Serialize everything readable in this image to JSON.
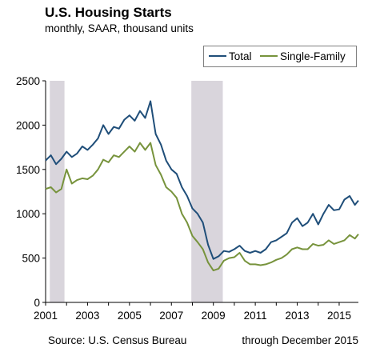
{
  "title": "U.S. Housing Starts",
  "subtitle": "monthly, SAAR,  thousand units",
  "source": "Source: U.S. Census Bureau",
  "note": "through December 2015",
  "colors": {
    "total": "#1f4e79",
    "single_family": "#77933c",
    "recession": "#d9d5dc",
    "axis": "#000000"
  },
  "chart_data": {
    "type": "line",
    "title": "U.S. Housing Starts",
    "subtitle": "monthly, SAAR,  thousand units",
    "xlabel": "",
    "ylabel": "",
    "xlim": [
      2001,
      2015.917
    ],
    "ylim": [
      0,
      2500
    ],
    "x_ticks": [
      "2001",
      "2003",
      "2005",
      "2007",
      "2009",
      "2011",
      "2013",
      "2015"
    ],
    "y_ticks": [
      "0",
      "500",
      "1000",
      "1500",
      "2000",
      "2500"
    ],
    "legend": {
      "position": "top-right",
      "entries": [
        "Total",
        "Single-Family"
      ]
    },
    "grid": false,
    "shaded_periods": [
      {
        "start": 2001.2,
        "end": 2001.9
      },
      {
        "start": 2007.95,
        "end": 2009.45
      }
    ],
    "series": [
      {
        "name": "Total",
        "x": [
          2001.0,
          2001.25,
          2001.5,
          2001.75,
          2002.0,
          2002.25,
          2002.5,
          2002.75,
          2003.0,
          2003.25,
          2003.5,
          2003.75,
          2004.0,
          2004.25,
          2004.5,
          2004.75,
          2005.0,
          2005.25,
          2005.5,
          2005.75,
          2006.0,
          2006.25,
          2006.5,
          2006.75,
          2007.0,
          2007.25,
          2007.5,
          2007.75,
          2008.0,
          2008.25,
          2008.5,
          2008.75,
          2009.0,
          2009.25,
          2009.5,
          2009.75,
          2010.0,
          2010.25,
          2010.5,
          2010.75,
          2011.0,
          2011.25,
          2011.5,
          2011.75,
          2012.0,
          2012.25,
          2012.5,
          2012.75,
          2013.0,
          2013.25,
          2013.5,
          2013.75,
          2014.0,
          2014.25,
          2014.5,
          2014.75,
          2015.0,
          2015.25,
          2015.5,
          2015.75,
          2015.917
        ],
        "values": [
          1600,
          1660,
          1560,
          1620,
          1700,
          1640,
          1680,
          1760,
          1720,
          1780,
          1850,
          2000,
          1900,
          1980,
          1960,
          2060,
          2110,
          2050,
          2160,
          2080,
          2270,
          1900,
          1780,
          1600,
          1500,
          1450,
          1300,
          1200,
          1060,
          1000,
          900,
          650,
          490,
          520,
          580,
          570,
          600,
          640,
          580,
          560,
          580,
          560,
          600,
          680,
          700,
          740,
          780,
          900,
          950,
          860,
          900,
          1000,
          880,
          1000,
          1100,
          1040,
          1050,
          1160,
          1200,
          1100,
          1150
        ]
      },
      {
        "name": "Single-Family",
        "x": [
          2001.0,
          2001.25,
          2001.5,
          2001.75,
          2002.0,
          2002.25,
          2002.5,
          2002.75,
          2003.0,
          2003.25,
          2003.5,
          2003.75,
          2004.0,
          2004.25,
          2004.5,
          2004.75,
          2005.0,
          2005.25,
          2005.5,
          2005.75,
          2006.0,
          2006.25,
          2006.5,
          2006.75,
          2007.0,
          2007.25,
          2007.5,
          2007.75,
          2008.0,
          2008.25,
          2008.5,
          2008.75,
          2009.0,
          2009.25,
          2009.5,
          2009.75,
          2010.0,
          2010.25,
          2010.5,
          2010.75,
          2011.0,
          2011.25,
          2011.5,
          2011.75,
          2012.0,
          2012.25,
          2012.5,
          2012.75,
          2013.0,
          2013.25,
          2013.5,
          2013.75,
          2014.0,
          2014.25,
          2014.5,
          2014.75,
          2015.0,
          2015.25,
          2015.5,
          2015.75,
          2015.917
        ],
        "values": [
          1280,
          1300,
          1240,
          1280,
          1500,
          1340,
          1380,
          1400,
          1390,
          1430,
          1500,
          1610,
          1580,
          1660,
          1640,
          1700,
          1760,
          1700,
          1800,
          1720,
          1800,
          1550,
          1440,
          1300,
          1250,
          1180,
          1000,
          900,
          750,
          680,
          600,
          450,
          360,
          380,
          470,
          500,
          510,
          560,
          470,
          430,
          430,
          420,
          430,
          450,
          480,
          500,
          540,
          600,
          620,
          600,
          600,
          660,
          640,
          650,
          700,
          660,
          680,
          700,
          760,
          720,
          770
        ]
      }
    ]
  }
}
